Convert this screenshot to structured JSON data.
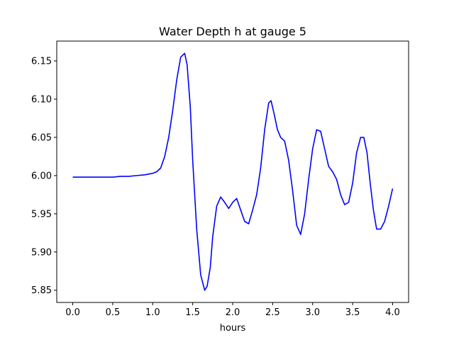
{
  "chart_data": {
    "type": "line",
    "title": "Water Depth h at gauge 5",
    "xlabel": "hours",
    "ylabel": "",
    "xlim": [
      -0.2,
      4.2
    ],
    "ylim": [
      5.834,
      6.176
    ],
    "xticks": [
      0.0,
      0.5,
      1.0,
      1.5,
      2.0,
      2.5,
      3.0,
      3.5,
      4.0
    ],
    "xtick_labels": [
      "0.0",
      "0.5",
      "1.0",
      "1.5",
      "2.0",
      "2.5",
      "3.0",
      "3.5",
      "4.0"
    ],
    "yticks": [
      5.85,
      5.9,
      5.95,
      6.0,
      6.05,
      6.1,
      6.15
    ],
    "ytick_labels": [
      "5.85",
      "5.90",
      "5.95",
      "6.00",
      "6.05",
      "6.10",
      "6.15"
    ],
    "grid": false,
    "series": [
      {
        "color": "#0000ff",
        "x": [
          0.0,
          0.2,
          0.4,
          0.5,
          0.6,
          0.7,
          0.8,
          0.9,
          1.0,
          1.05,
          1.1,
          1.15,
          1.2,
          1.25,
          1.3,
          1.35,
          1.4,
          1.43,
          1.47,
          1.5,
          1.55,
          1.6,
          1.65,
          1.68,
          1.72,
          1.75,
          1.8,
          1.85,
          1.9,
          1.95,
          2.0,
          2.05,
          2.1,
          2.15,
          2.2,
          2.25,
          2.3,
          2.35,
          2.4,
          2.45,
          2.48,
          2.52,
          2.56,
          2.6,
          2.65,
          2.7,
          2.75,
          2.8,
          2.85,
          2.9,
          2.95,
          3.0,
          3.05,
          3.1,
          3.15,
          3.2,
          3.25,
          3.3,
          3.35,
          3.4,
          3.45,
          3.5,
          3.55,
          3.6,
          3.64,
          3.68,
          3.72,
          3.76,
          3.8,
          3.85,
          3.9,
          3.95,
          4.0
        ],
        "y": [
          5.998,
          5.998,
          5.998,
          5.998,
          5.999,
          5.999,
          6.0,
          6.001,
          6.003,
          6.005,
          6.01,
          6.025,
          6.05,
          6.085,
          6.125,
          6.155,
          6.16,
          6.145,
          6.09,
          6.02,
          5.93,
          5.87,
          5.85,
          5.855,
          5.88,
          5.92,
          5.96,
          5.972,
          5.965,
          5.957,
          5.965,
          5.97,
          5.955,
          5.94,
          5.937,
          5.955,
          5.975,
          6.01,
          6.06,
          6.095,
          6.098,
          6.08,
          6.06,
          6.05,
          6.045,
          6.02,
          5.98,
          5.935,
          5.923,
          5.95,
          5.995,
          6.035,
          6.06,
          6.058,
          6.035,
          6.012,
          6.005,
          5.995,
          5.975,
          5.962,
          5.965,
          5.99,
          6.03,
          6.05,
          6.05,
          6.03,
          5.99,
          5.955,
          5.93,
          5.93,
          5.94,
          5.96,
          5.983
        ]
      }
    ]
  }
}
